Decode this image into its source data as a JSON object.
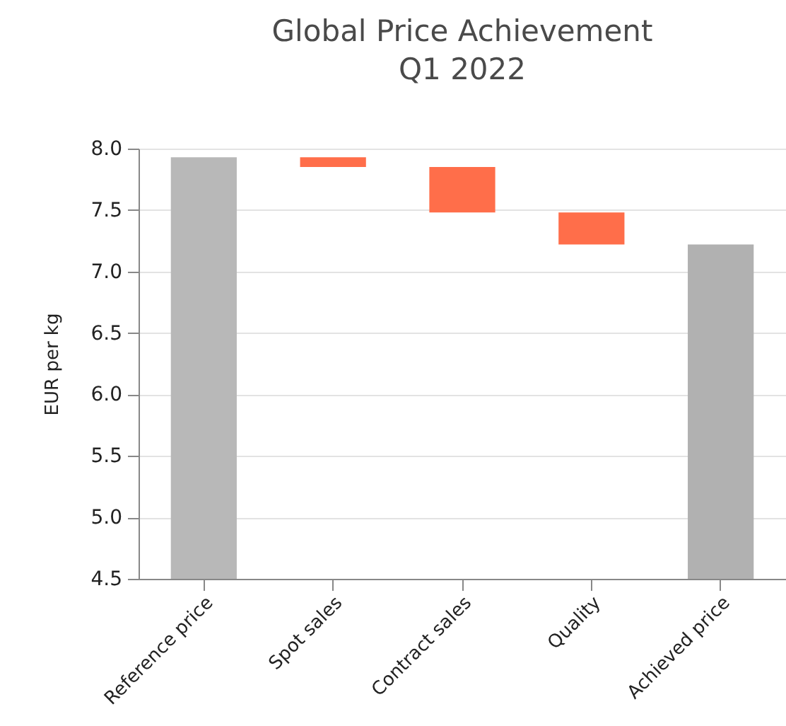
{
  "chart_data": {
    "type": "bar",
    "title": "Global Price Achievement",
    "subtitle": "Q1 2022",
    "ylabel": "EUR per kg",
    "categories": [
      "Reference price",
      "Spot sales",
      "Contract sales",
      "Quality",
      "Achieved price"
    ],
    "values": [
      7.93,
      -0.08,
      -0.37,
      -0.26,
      7.22
    ],
    "base": [
      null,
      7.93,
      7.85,
      7.48,
      null
    ],
    "colors": [
      "#b8b8b8",
      "#ff6e4a",
      "#ff6e4a",
      "#ff6e4a",
      "#b1b1b1"
    ],
    "ylim": [
      4.5,
      8.0
    ],
    "yticks": [
      {
        "value": 4.5,
        "label": "4.5"
      },
      {
        "value": 5,
        "label": "5.0"
      },
      {
        "value": 5.5,
        "label": "5.5"
      },
      {
        "value": 6,
        "label": "6.0"
      },
      {
        "value": 6.5,
        "label": "6.5"
      },
      {
        "value": 7,
        "label": "7.0"
      },
      {
        "value": 7.5,
        "label": "7.5"
      },
      {
        "value": 8,
        "label": "8.0"
      }
    ],
    "grid": "y"
  }
}
